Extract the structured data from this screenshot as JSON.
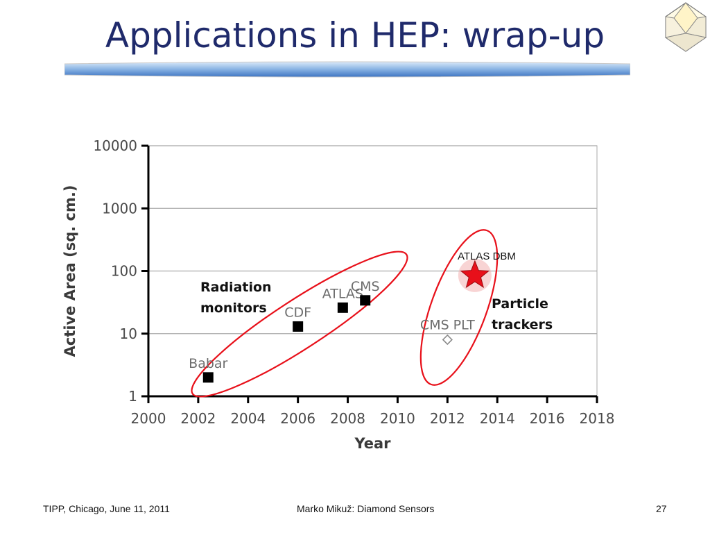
{
  "slide": {
    "title": "Applications in HEP: wrap-up",
    "footer_left": "TIPP, Chicago, June 11, 2011",
    "footer_center": "Marko Mikuž: Diamond Sensors",
    "page_number": "27"
  },
  "annotations": {
    "radiation_line1": "Radiation",
    "radiation_line2": "monitors",
    "particle_line1": "Particle",
    "particle_line2": "trackers",
    "atlas_dbm": "ATLAS DBM"
  },
  "colors": {
    "title": "#1f2a6b",
    "ellipse": "#e8101a",
    "star": "#e8101a",
    "marker": "#000000"
  },
  "chart_data": {
    "type": "scatter",
    "xlabel": "Year",
    "ylabel": "Active Area (sq. cm.)",
    "xlim": [
      2000,
      2018
    ],
    "ylim": [
      1,
      10000
    ],
    "yscale": "log",
    "grid": "horizontal",
    "x_ticks": [
      "2000",
      "2002",
      "2004",
      "2006",
      "2008",
      "2010",
      "2012",
      "2014",
      "2016",
      "2018"
    ],
    "y_ticks": [
      "1",
      "10",
      "100",
      "1000",
      "10000"
    ],
    "series": [
      {
        "marker": "square",
        "points": [
          {
            "label": "Babar",
            "x": 2002.4,
            "y": 2
          },
          {
            "label": "CDF",
            "x": 2006.0,
            "y": 13
          },
          {
            "label": "ATLAS",
            "x": 2007.8,
            "y": 26
          },
          {
            "label": "CMS",
            "x": 2008.7,
            "y": 34
          }
        ]
      },
      {
        "marker": "diamond-open",
        "points": [
          {
            "label": "CMS PLT",
            "x": 2012.0,
            "y": 8
          }
        ]
      },
      {
        "marker": "star",
        "points": [
          {
            "label": "ATLAS DBM",
            "x": 2013.1,
            "y": 85
          }
        ]
      }
    ]
  }
}
